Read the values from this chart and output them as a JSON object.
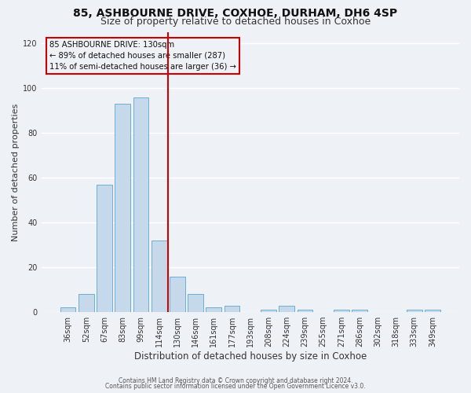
{
  "title1": "85, ASHBOURNE DRIVE, COXHOE, DURHAM, DH6 4SP",
  "title2": "Size of property relative to detached houses in Coxhoe",
  "xlabel": "Distribution of detached houses by size in Coxhoe",
  "ylabel": "Number of detached properties",
  "bar_labels": [
    "36sqm",
    "52sqm",
    "67sqm",
    "83sqm",
    "99sqm",
    "114sqm",
    "130sqm",
    "146sqm",
    "161sqm",
    "177sqm",
    "193sqm",
    "208sqm",
    "224sqm",
    "239sqm",
    "255sqm",
    "271sqm",
    "286sqm",
    "302sqm",
    "318sqm",
    "333sqm",
    "349sqm"
  ],
  "bar_values": [
    2,
    8,
    57,
    93,
    96,
    32,
    16,
    8,
    2,
    3,
    0,
    1,
    3,
    1,
    0,
    1,
    1,
    0,
    0,
    1,
    1
  ],
  "bar_color": "#c6d9ea",
  "bar_edgecolor": "#6aaed6",
  "vline_index": 6,
  "vline_color": "#cc0000",
  "ylim": [
    0,
    125
  ],
  "yticks": [
    0,
    20,
    40,
    60,
    80,
    100,
    120
  ],
  "annotation_line1": "85 ASHBOURNE DRIVE: 130sqm",
  "annotation_line2": "← 89% of detached houses are smaller (287)",
  "annotation_line3": "11% of semi-detached houses are larger (36) →",
  "annotation_box_edgecolor": "#cc0000",
  "footer1": "Contains HM Land Registry data © Crown copyright and database right 2024.",
  "footer2": "Contains public sector information licensed under the Open Government Licence v3.0.",
  "background_color": "#eef2f7",
  "grid_color": "#ffffff",
  "title1_fontsize": 10,
  "title2_fontsize": 9,
  "xlabel_fontsize": 8.5,
  "ylabel_fontsize": 8,
  "tick_fontsize": 7,
  "footer_fontsize": 5.5
}
